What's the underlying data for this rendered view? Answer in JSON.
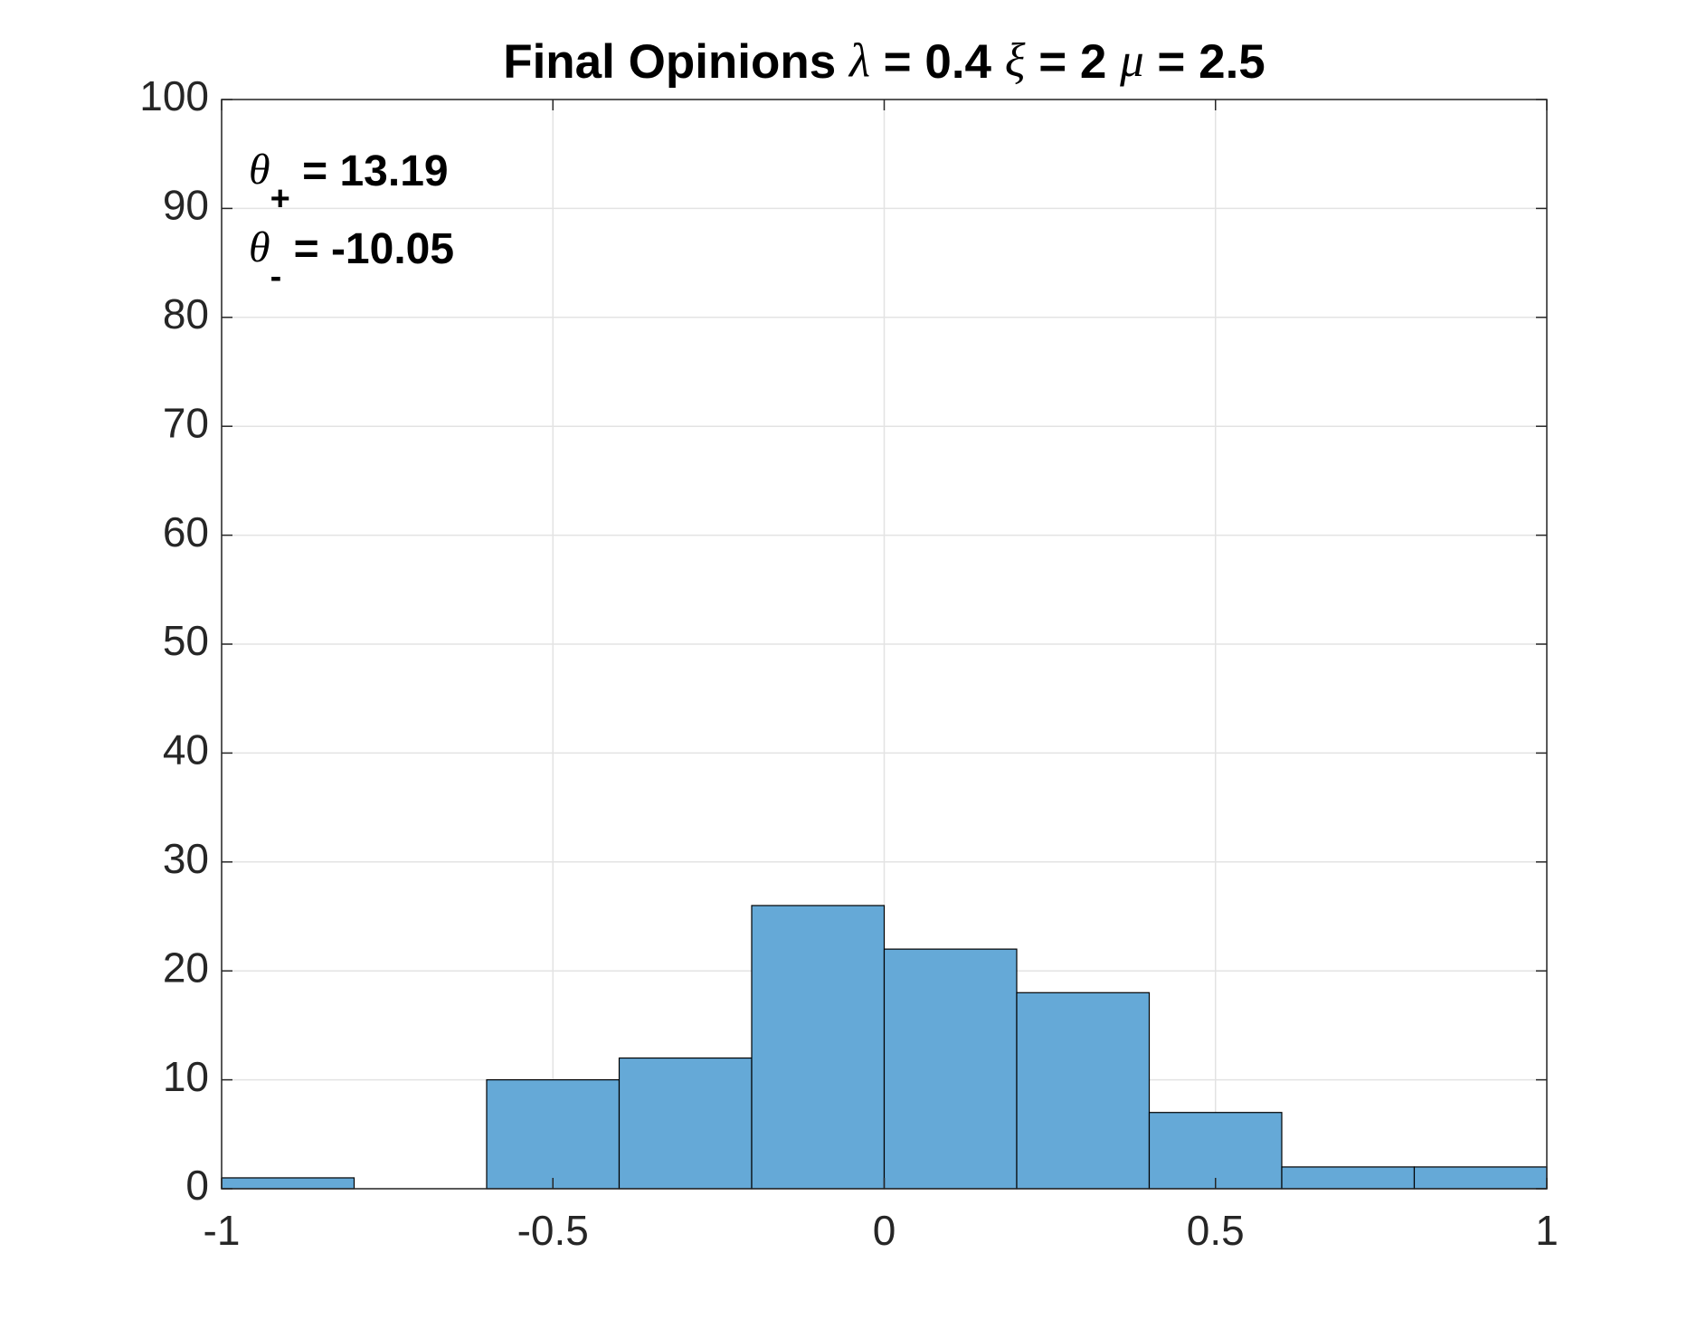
{
  "chart_data": {
    "type": "histogram",
    "title": "Final Opinions  λ = 0.4 ξ = 2 μ = 2.5",
    "annotations": [
      {
        "symbol": "θ",
        "subscript": "+",
        "text": " = 13.19"
      },
      {
        "symbol": "θ",
        "subscript": "-",
        "text": " = -10.05"
      }
    ],
    "bins": [
      -1,
      -0.8,
      -0.6,
      -0.4,
      -0.2,
      0,
      0.2,
      0.4,
      0.6,
      0.8,
      1
    ],
    "values": [
      1,
      0,
      10,
      12,
      26,
      22,
      18,
      7,
      2,
      2
    ],
    "color": "#65a9d7",
    "xlim": [
      -1,
      1
    ],
    "xticks": [
      -1,
      -0.5,
      0,
      0.5,
      1
    ],
    "ylim": [
      0,
      100
    ],
    "yticks": [
      0,
      10,
      20,
      30,
      40,
      50,
      60,
      70,
      80,
      90,
      100
    ],
    "grid": true
  }
}
